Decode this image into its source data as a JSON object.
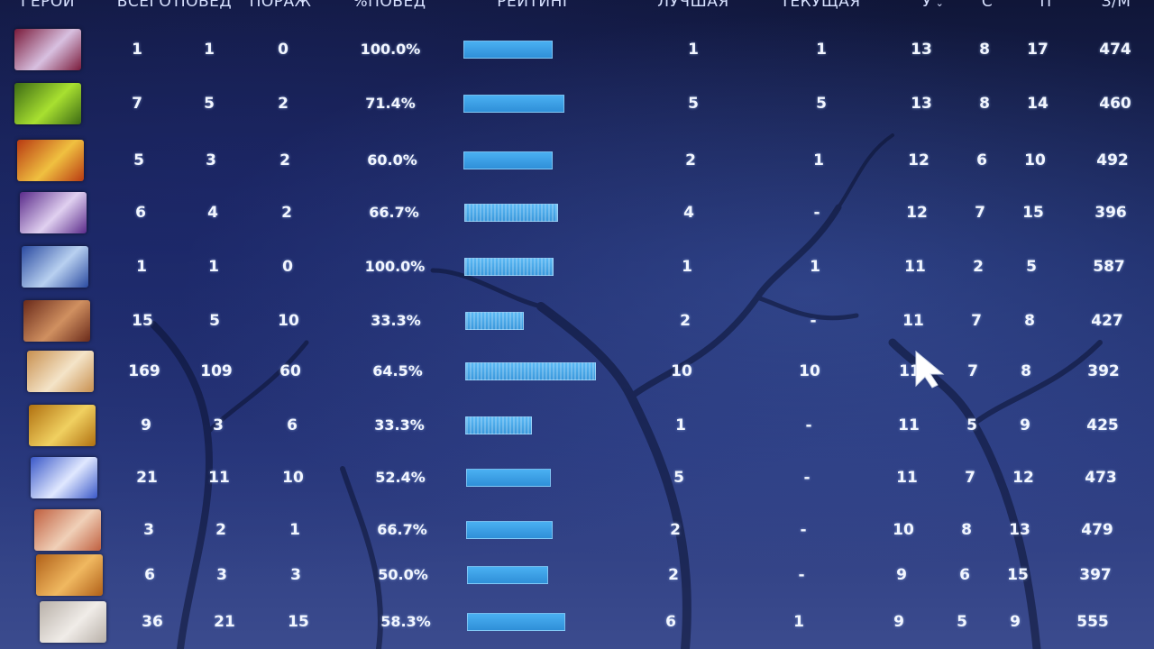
{
  "header": {
    "hero": "ГЕРОЙ",
    "total": "ВСЕГО",
    "wins": "ПОБЕД",
    "losses": "ПОРАЖ",
    "winrate": "%ПОБЕД",
    "rating": "РЕЙТИНГ",
    "best": "ЛУЧШАЯ",
    "current": "ТЕКУЩАЯ",
    "kills": "У",
    "deaths": "С",
    "assists": "П",
    "gpm": "З/М",
    "sort_icon": "chevron-down-icon"
  },
  "colors": {
    "bar_top": "#4ab0f2",
    "bar_bottom": "#2f8fd8",
    "text": "#f2f6ff"
  },
  "rows": [
    {
      "total": "1",
      "wins": "1",
      "losses": "0",
      "winrate": "100.0%",
      "rating": 0.68,
      "best": "1",
      "current": "1",
      "kills": "13",
      "deaths": "8",
      "assists": "17",
      "gpm": "474",
      "portrait": [
        "#7a1a3a",
        "#d8c0e0"
      ]
    },
    {
      "total": "7",
      "wins": "5",
      "losses": "2",
      "winrate": "71.4%",
      "rating": 0.77,
      "best": "5",
      "current": "5",
      "kills": "13",
      "deaths": "8",
      "assists": "14",
      "gpm": "460",
      "portrait": [
        "#3c6a14",
        "#a8e030"
      ]
    },
    {
      "total": "5",
      "wins": "3",
      "losses": "2",
      "winrate": "60.0%",
      "rating": 0.68,
      "best": "2",
      "current": "1",
      "kills": "12",
      "deaths": "6",
      "assists": "10",
      "gpm": "492",
      "portrait": [
        "#b83a12",
        "#f0c040"
      ]
    },
    {
      "total": "6",
      "wins": "4",
      "losses": "2",
      "winrate": "66.7%",
      "rating": 0.72,
      "best": "4",
      "current": "-",
      "kills": "12",
      "deaths": "7",
      "assists": "15",
      "gpm": "396",
      "portrait": [
        "#5a2a8a",
        "#e0d0f0"
      ]
    },
    {
      "total": "1",
      "wins": "1",
      "losses": "0",
      "winrate": "100.0%",
      "rating": 0.68,
      "best": "1",
      "current": "1",
      "kills": "11",
      "deaths": "2",
      "assists": "5",
      "gpm": "587",
      "portrait": [
        "#2a4aa0",
        "#b8d0f0"
      ]
    },
    {
      "total": "15",
      "wins": "5",
      "losses": "10",
      "winrate": "33.3%",
      "rating": 0.45,
      "best": "2",
      "current": "-",
      "kills": "11",
      "deaths": "7",
      "assists": "8",
      "gpm": "427",
      "portrait": [
        "#6a2a1a",
        "#d09060"
      ]
    },
    {
      "total": "169",
      "wins": "109",
      "losses": "60",
      "winrate": "64.5%",
      "rating": 1.0,
      "best": "10",
      "current": "10",
      "kills": "11",
      "deaths": "7",
      "assists": "8",
      "gpm": "392",
      "portrait": [
        "#c89050",
        "#f4e4c8"
      ]
    },
    {
      "total": "9",
      "wins": "3",
      "losses": "6",
      "winrate": "33.3%",
      "rating": 0.51,
      "best": "1",
      "current": "-",
      "kills": "11",
      "deaths": "5",
      "assists": "9",
      "gpm": "425",
      "portrait": [
        "#b07010",
        "#f0d060"
      ]
    },
    {
      "total": "21",
      "wins": "11",
      "losses": "10",
      "winrate": "52.4%",
      "rating": 0.65,
      "best": "5",
      "current": "-",
      "kills": "11",
      "deaths": "7",
      "assists": "12",
      "gpm": "473",
      "portrait": [
        "#3a58c8",
        "#e0e8ff"
      ]
    },
    {
      "total": "3",
      "wins": "2",
      "losses": "1",
      "winrate": "66.7%",
      "rating": 0.66,
      "best": "2",
      "current": "-",
      "kills": "10",
      "deaths": "8",
      "assists": "13",
      "gpm": "479",
      "portrait": [
        "#c06040",
        "#f0d0b8"
      ]
    },
    {
      "total": "6",
      "wins": "3",
      "losses": "3",
      "winrate": "50.0%",
      "rating": 0.62,
      "best": "2",
      "current": "-",
      "kills": "9",
      "deaths": "6",
      "assists": "15",
      "gpm": "397",
      "portrait": [
        "#b06018",
        "#f0b860"
      ]
    },
    {
      "total": "36",
      "wins": "21",
      "losses": "15",
      "winrate": "58.3%",
      "rating": 0.75,
      "best": "6",
      "current": "1",
      "kills": "9",
      "deaths": "5",
      "assists": "9",
      "gpm": "555",
      "portrait": [
        "#b8b0a8",
        "#f0ece8"
      ]
    }
  ]
}
